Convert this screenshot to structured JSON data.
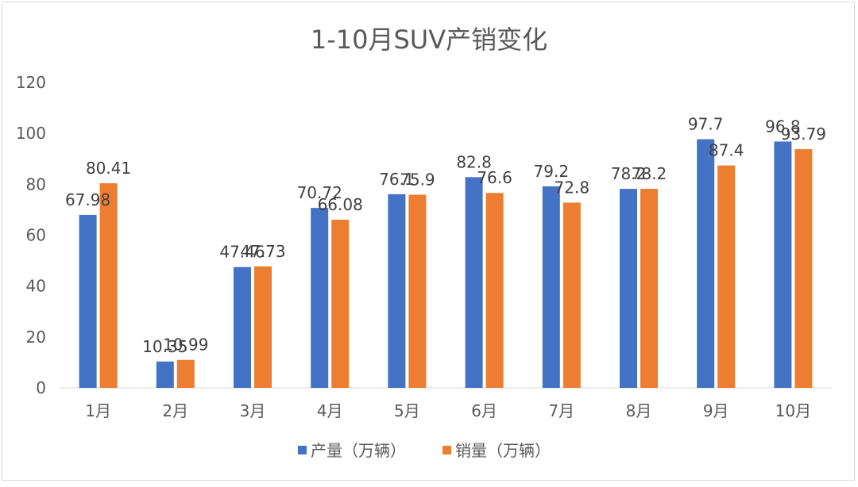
{
  "chart_data": {
    "type": "bar",
    "title": "1-10月SUV产销变化",
    "categories": [
      "1月",
      "2月",
      "3月",
      "4月",
      "5月",
      "6月",
      "7月",
      "8月",
      "9月",
      "10月"
    ],
    "series": [
      {
        "name": "产量（万辆）",
        "color": "#4472c4",
        "values": [
          67.98,
          10.35,
          47.46,
          70.72,
          76.1,
          82.8,
          79.2,
          78.2,
          97.7,
          96.8
        ],
        "labels": [
          "67.98",
          "10.35",
          "47.46",
          "70.72",
          "76.1",
          "82.8",
          "79.2",
          "78.2",
          "97.7",
          "96.8"
        ]
      },
      {
        "name": "销量（万辆）",
        "color": "#ed7d31",
        "values": [
          80.41,
          10.99,
          47.73,
          66.08,
          75.9,
          76.6,
          72.8,
          78.2,
          87.4,
          93.79
        ],
        "labels": [
          "80.41",
          "10.99",
          "47.73",
          "66.08",
          "75.9",
          "76.6",
          "72.8",
          "78.2",
          "87.4",
          "93.79"
        ]
      }
    ],
    "ylim": [
      0,
      120
    ],
    "yticks": [
      "0",
      "20",
      "40",
      "60",
      "80",
      "100",
      "120"
    ],
    "grid": false,
    "legend": "bottom"
  }
}
